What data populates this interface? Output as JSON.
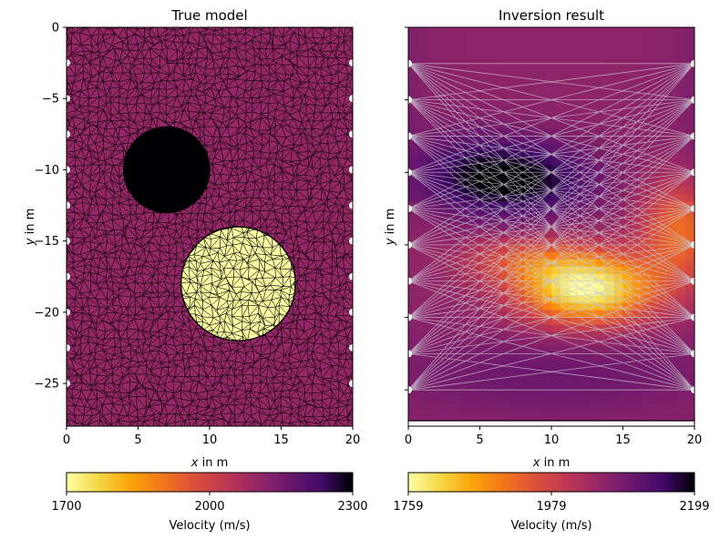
{
  "chart_data": [
    {
      "type": "heatmap",
      "title": "True model",
      "xlabel_var": "x",
      "xlabel_rest": " in m",
      "ylabel_var": "y",
      "ylabel_rest": " in m",
      "xlim": [
        0,
        20
      ],
      "ylim": [
        -28,
        0
      ],
      "xticks": [
        0,
        5,
        10,
        15,
        20
      ],
      "yticks": [
        0,
        -5,
        -10,
        -15,
        -20,
        -25
      ],
      "background_velocity": 2100,
      "anomalies": [
        {
          "shape": "circle",
          "center_x": 7,
          "center_y": -10,
          "radius": 3,
          "velocity": 2300
        },
        {
          "shape": "circle",
          "center_x": 12,
          "center_y": -18,
          "radius": 4,
          "velocity": 1700
        }
      ],
      "mesh": "triangular",
      "sensors_x": [
        0,
        20
      ],
      "sensors_y": [
        -2.5,
        -5,
        -7.5,
        -10,
        -12.5,
        -15,
        -17.5,
        -20,
        -22.5,
        -25
      ],
      "colorbar": {
        "label": "Velocity (m/s)",
        "min": 1700,
        "max": 2300,
        "ticks": [
          1700,
          2000,
          2300
        ],
        "colormap": "inferno_r"
      }
    },
    {
      "type": "heatmap",
      "title": "Inversion result",
      "xlabel_var": "x",
      "xlabel_rest": " in m",
      "ylabel_var": "y",
      "ylabel_rest": " in m",
      "xlim": [
        0,
        20
      ],
      "ylim": [
        -27.5,
        0
      ],
      "xticks": [
        0,
        5,
        10,
        15,
        20
      ],
      "yticks": [
        0,
        -5,
        -10,
        -15,
        -20,
        -25
      ],
      "background_velocity": 2060,
      "anomalies": [
        {
          "center_x": 8,
          "center_y": -10.5,
          "sigma_x": 3.5,
          "sigma_y": 1.8,
          "delta_velocity": 130
        },
        {
          "center_x": 4,
          "center_y": -10,
          "sigma_x": 2.5,
          "sigma_y": 2.0,
          "delta_velocity": 60
        },
        {
          "center_x": 12.5,
          "center_y": -18,
          "sigma_x": 3.3,
          "sigma_y": 1.7,
          "delta_velocity": -300
        },
        {
          "center_x": 19,
          "center_y": -14,
          "sigma_x": 2.0,
          "sigma_y": 2.5,
          "delta_velocity": -140
        },
        {
          "center_x": 8,
          "center_y": -16,
          "sigma_x": 3.0,
          "sigma_y": 1.2,
          "delta_velocity": -90
        },
        {
          "center_x": 10,
          "center_y": -24,
          "sigma_x": 9.0,
          "sigma_y": 2.0,
          "delta_velocity": 40
        }
      ],
      "sensors_x": [
        0,
        20
      ],
      "sensors_y": [
        -2.5,
        -5,
        -7.5,
        -10,
        -12.5,
        -15,
        -17.5,
        -20,
        -22.5,
        -25
      ],
      "ray_paths": "straight rays between all source-receiver pairs on opposite boreholes",
      "colorbar": {
        "label": "Velocity (m/s)",
        "min": 1759,
        "max": 2199,
        "ticks": [
          1759,
          1979,
          2199
        ],
        "colormap": "inferno_r"
      }
    }
  ],
  "colors": {
    "background": "#ffffff",
    "mesh_edges": "#000000",
    "rays": "#c8c8d2",
    "sensors": "#ffffff"
  }
}
